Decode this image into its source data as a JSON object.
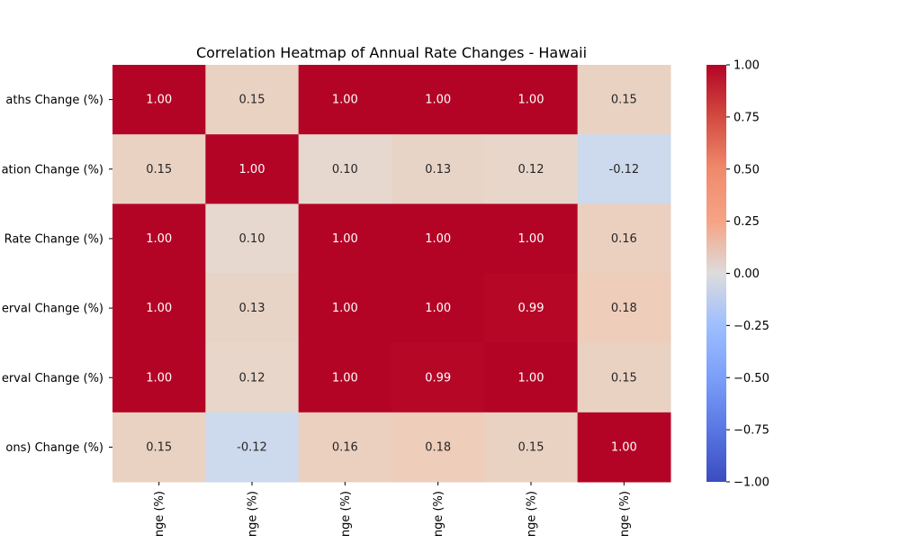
{
  "chart_data": {
    "type": "heatmap",
    "title": "Correlation Heatmap of Annual Rate Changes - Hawaii",
    "row_labels": [
      "aths Change (%)",
      "ation Change (%)",
      "Rate Change (%)",
      "erval Change (%)",
      "erval Change (%)",
      "ons) Change (%)"
    ],
    "column_labels": [
      "nge (%)",
      "nge (%)",
      "nge (%)",
      "nge (%)",
      "nge (%)",
      "nge (%)"
    ],
    "values": [
      [
        1.0,
        0.15,
        1.0,
        1.0,
        1.0,
        0.15
      ],
      [
        0.15,
        1.0,
        0.1,
        0.13,
        0.12,
        -0.12
      ],
      [
        1.0,
        0.1,
        1.0,
        1.0,
        1.0,
        0.16
      ],
      [
        1.0,
        0.13,
        1.0,
        1.0,
        0.99,
        0.18
      ],
      [
        1.0,
        0.12,
        1.0,
        0.99,
        1.0,
        0.15
      ],
      [
        0.15,
        -0.12,
        0.16,
        0.18,
        0.15,
        1.0
      ]
    ],
    "colorbar": {
      "colormap": "coolwarm",
      "vmin": -1.0,
      "vmax": 1.0,
      "ticks": [
        1.0,
        0.75,
        0.5,
        0.25,
        0.0,
        -0.25,
        -0.5,
        -0.75,
        -1.0
      ],
      "tick_labels": [
        "1.00",
        "0.75",
        "0.50",
        "0.25",
        "0.00",
        "−0.25",
        "−0.50",
        "−0.75",
        "−1.00"
      ]
    }
  }
}
